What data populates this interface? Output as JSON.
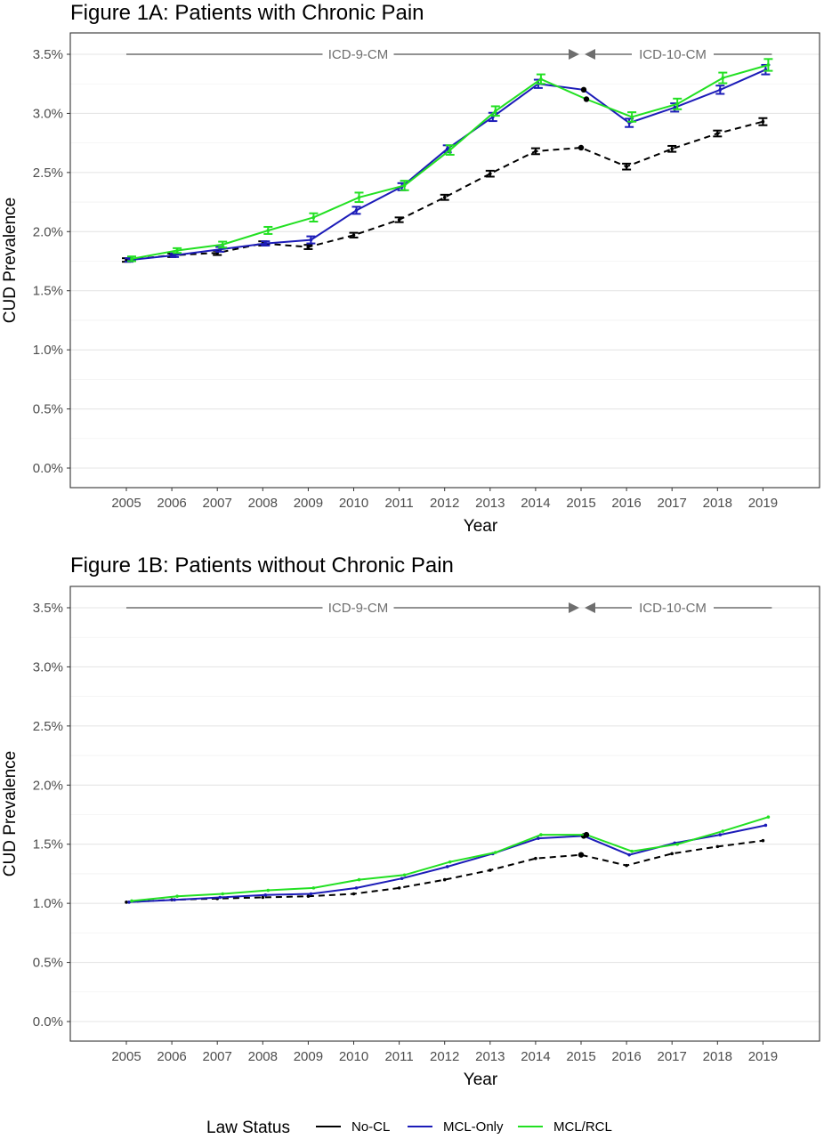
{
  "legend": {
    "title": "Law Status",
    "placement": "bottom",
    "entries": [
      {
        "label": "No-CL",
        "color": "#000000",
        "dash": true
      },
      {
        "label": "MCL-Only",
        "color": "#1c1cb8",
        "dash": false
      },
      {
        "label": "MCL/RCL",
        "color": "#22e022",
        "dash": false
      }
    ]
  },
  "chart_data": [
    {
      "type": "line",
      "title": "Figure 1A: Patients with Chronic Pain",
      "xlabel": "Year",
      "ylabel": "CUD Prevalence",
      "ylim": [
        0,
        3.5
      ],
      "y_ticks": [
        "0.0%",
        "0.5%",
        "1.0%",
        "1.5%",
        "2.0%",
        "2.5%",
        "3.0%",
        "3.5%"
      ],
      "x": [
        "2005",
        "2006",
        "2007",
        "2008",
        "2009",
        "2010",
        "2011",
        "2012",
        "2013",
        "2014",
        "2015",
        "2016",
        "2017",
        "2018",
        "2019"
      ],
      "grid": true,
      "error_bars": true,
      "annotations": [
        {
          "text": "ICD-9-CM",
          "from": "2005",
          "to": "2015",
          "arrow": "right"
        },
        {
          "text": "ICD-10-CM",
          "from": "2015",
          "to": "2019",
          "arrow": "left"
        }
      ],
      "series": [
        {
          "name": "No-CL",
          "color": "#000000",
          "values": [
            1.76,
            1.8,
            1.82,
            1.9,
            1.87,
            1.97,
            2.1,
            2.29,
            2.49,
            2.68,
            2.71,
            2.55,
            2.7,
            2.83,
            2.93
          ],
          "err": [
            0.015,
            0.015,
            0.018,
            0.018,
            0.018,
            0.02,
            0.02,
            0.022,
            0.025,
            0.025,
            0.0,
            0.025,
            0.025,
            0.025,
            0.03
          ]
        },
        {
          "name": "MCL-Only",
          "color": "#1c1cb8",
          "values": [
            1.76,
            1.8,
            1.85,
            1.9,
            1.93,
            2.18,
            2.38,
            2.7,
            2.97,
            3.25,
            3.2,
            2.92,
            3.05,
            3.2,
            3.37
          ],
          "err": [
            0.015,
            0.015,
            0.02,
            0.018,
            0.03,
            0.03,
            0.03,
            0.03,
            0.035,
            0.035,
            0.0,
            0.035,
            0.035,
            0.035,
            0.04
          ]
        },
        {
          "name": "MCL/RCL",
          "color": "#22e022",
          "values": [
            1.77,
            1.84,
            1.89,
            2.01,
            2.12,
            2.29,
            2.39,
            2.69,
            3.02,
            3.29,
            3.12,
            2.97,
            3.08,
            3.3,
            3.41
          ],
          "err": [
            0.02,
            0.02,
            0.025,
            0.03,
            0.035,
            0.04,
            0.04,
            0.04,
            0.04,
            0.04,
            0.0,
            0.04,
            0.045,
            0.045,
            0.05
          ]
        }
      ]
    },
    {
      "type": "line",
      "title": "Figure 1B: Patients without Chronic Pain",
      "xlabel": "Year",
      "ylabel": "CUD Prevalence",
      "ylim": [
        0,
        3.5
      ],
      "y_ticks": [
        "0.0%",
        "0.5%",
        "1.0%",
        "1.5%",
        "2.0%",
        "2.5%",
        "3.0%",
        "3.5%"
      ],
      "x": [
        "2005",
        "2006",
        "2007",
        "2008",
        "2009",
        "2010",
        "2011",
        "2012",
        "2013",
        "2014",
        "2015",
        "2016",
        "2017",
        "2018",
        "2019"
      ],
      "grid": true,
      "error_bars": false,
      "annotations": [
        {
          "text": "ICD-9-CM",
          "from": "2005",
          "to": "2015",
          "arrow": "right"
        },
        {
          "text": "ICD-10-CM",
          "from": "2015",
          "to": "2019",
          "arrow": "left"
        }
      ],
      "series": [
        {
          "name": "No-CL",
          "color": "#000000",
          "values": [
            1.01,
            1.03,
            1.04,
            1.05,
            1.06,
            1.08,
            1.13,
            1.2,
            1.28,
            1.38,
            1.41,
            1.32,
            1.42,
            1.48,
            1.53
          ]
        },
        {
          "name": "MCL-Only",
          "color": "#1c1cb8",
          "values": [
            1.01,
            1.03,
            1.05,
            1.07,
            1.08,
            1.13,
            1.21,
            1.31,
            1.42,
            1.55,
            1.57,
            1.41,
            1.51,
            1.58,
            1.66
          ]
        },
        {
          "name": "MCL/RCL",
          "color": "#22e022",
          "values": [
            1.02,
            1.06,
            1.08,
            1.11,
            1.13,
            1.2,
            1.24,
            1.35,
            1.43,
            1.58,
            1.58,
            1.44,
            1.5,
            1.61,
            1.73
          ]
        }
      ]
    }
  ]
}
